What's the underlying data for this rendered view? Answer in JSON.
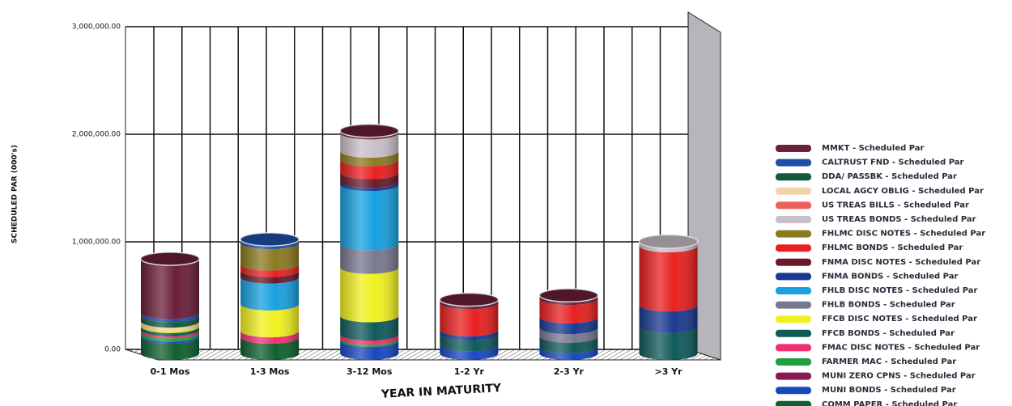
{
  "chart_data": {
    "type": "bar3d_stacked",
    "y_label": "SCHEDULED PAR (000's)",
    "x_label": "YEAR IN MATURITY",
    "categories": [
      "0-1 Mos",
      "1-3 Mos",
      "3-12 Mos",
      "1-2 Yr",
      "2-3 Yr",
      ">3 Yr"
    ],
    "ylim": [
      0,
      3000000
    ],
    "yticks": [
      {
        "value": 0,
        "label": "0.00"
      },
      {
        "value": 1000000,
        "label": "1,000,000.00"
      },
      {
        "value": 2000000,
        "label": "2,000,000.00"
      },
      {
        "value": 3000000,
        "label": "3,000,000.00"
      }
    ],
    "grid": true,
    "legend": "right",
    "series": [
      {
        "name": "MMKT - Scheduled Par",
        "color": "#6b1f3a",
        "values": [
          500000,
          0,
          20000,
          30000,
          30000,
          0
        ]
      },
      {
        "name": "CALTRUST FND - Scheduled Par",
        "color": "#1f4fa8",
        "values": [
          30000,
          30000,
          0,
          0,
          0,
          0
        ]
      },
      {
        "name": "DDA/ PASSBK - Scheduled Par",
        "color": "#0f5a3a",
        "values": [
          50000,
          0,
          0,
          0,
          0,
          0
        ]
      },
      {
        "name": "LOCAL AGCY OBLIG - Scheduled Par",
        "color": "#f5d3a8",
        "values": [
          30000,
          0,
          0,
          0,
          0,
          0
        ]
      },
      {
        "name": "US TREAS BILLS - Scheduled Par",
        "color": "#f0605a",
        "values": [
          0,
          0,
          0,
          0,
          0,
          0
        ]
      },
      {
        "name": "US TREAS BONDS - Scheduled Par",
        "color": "#c8c0c8",
        "values": [
          0,
          0,
          170000,
          0,
          0,
          40000
        ]
      },
      {
        "name": "FHLMC DISC NOTES - Scheduled Par",
        "color": "#8a7a20",
        "values": [
          0,
          200000,
          80000,
          0,
          0,
          0
        ]
      },
      {
        "name": "FHLMC BONDS - Scheduled Par",
        "color": "#e82020",
        "values": [
          0,
          60000,
          120000,
          250000,
          170000,
          550000
        ]
      },
      {
        "name": "FNMA DISC NOTES - Scheduled Par",
        "color": "#6a1a2a",
        "values": [
          0,
          60000,
          80000,
          0,
          0,
          0
        ]
      },
      {
        "name": "FNMA BONDS - Scheduled Par",
        "color": "#1a3a90",
        "values": [
          0,
          0,
          30000,
          40000,
          100000,
          200000
        ]
      },
      {
        "name": "FHLB DISC NOTES - Scheduled Par",
        "color": "#18a0e0",
        "values": [
          0,
          250000,
          550000,
          0,
          0,
          0
        ]
      },
      {
        "name": "FHLB BONDS - Scheduled Par",
        "color": "#787890",
        "values": [
          0,
          0,
          220000,
          0,
          80000,
          0
        ]
      },
      {
        "name": "FFCB DISC NOTES - Scheduled Par",
        "color": "#f0f020",
        "values": [
          20000,
          250000,
          450000,
          0,
          0,
          0
        ]
      },
      {
        "name": "FFCB BONDS - Scheduled Par",
        "color": "#105a5a",
        "values": [
          30000,
          0,
          170000,
          100000,
          100000,
          250000
        ]
      },
      {
        "name": "FMAC DISC NOTES - Scheduled Par",
        "color": "#f03070",
        "values": [
          20000,
          60000,
          40000,
          0,
          0,
          0
        ]
      },
      {
        "name": "FARMER MAC - Scheduled Par",
        "color": "#20a040",
        "values": [
          30000,
          0,
          20000,
          0,
          0,
          0
        ]
      },
      {
        "name": "MUNI ZERO CPNS - Scheduled Par",
        "color": "#8a1850",
        "values": [
          0,
          0,
          0,
          0,
          0,
          0
        ]
      },
      {
        "name": "MUNI BONDS - Scheduled Par",
        "color": "#1848c0",
        "values": [
          20000,
          0,
          120000,
          80000,
          60000,
          0
        ]
      },
      {
        "name": "COMM PAPER - Scheduled Par",
        "color": "#106030",
        "values": [
          150000,
          150000,
          0,
          0,
          0,
          0
        ]
      }
    ]
  }
}
